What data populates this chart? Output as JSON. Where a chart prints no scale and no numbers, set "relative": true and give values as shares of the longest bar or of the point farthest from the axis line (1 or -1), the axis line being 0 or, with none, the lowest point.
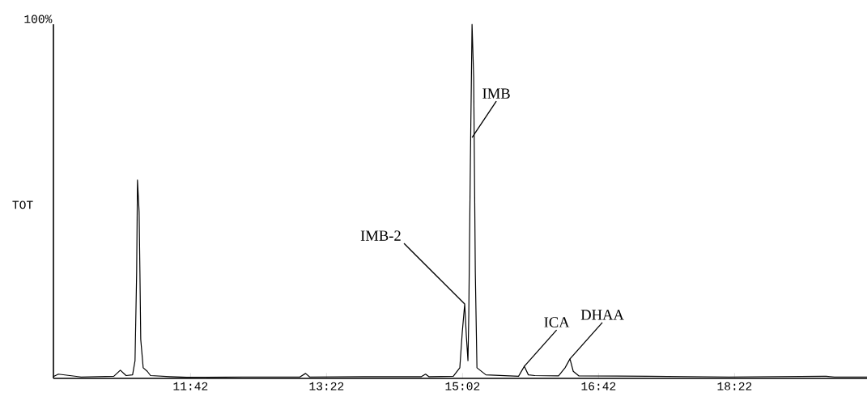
{
  "chart_data": {
    "type": "line",
    "ylabel": "TOT",
    "relative": true,
    "line_style": "solid",
    "marker": "none",
    "grid": false,
    "x": [
      10.02,
      10.08,
      10.36,
      10.76,
      10.84,
      10.91,
      10.99,
      11.02,
      11.04,
      11.05,
      11.07,
      11.08,
      11.09,
      11.12,
      11.17,
      11.21,
      11.45,
      11.65,
      12.34,
      13.04,
      13.11,
      13.16,
      13.83,
      14.53,
      14.58,
      14.62,
      14.92,
      15.0,
      15.03,
      15.06,
      15.08,
      15.1,
      15.11,
      15.13,
      15.15,
      15.17,
      15.19,
      15.21,
      15.32,
      15.72,
      15.79,
      15.84,
      15.92,
      16.21,
      16.29,
      16.35,
      16.39,
      16.46,
      17.3,
      18.3,
      19.49,
      19.59,
      19.99
    ],
    "series": [
      {
        "color": "#000000",
        "values": [
          0.005,
          0.012,
          0.004,
          0.006,
          0.023,
          0.008,
          0.01,
          0.05,
          0.3,
          0.56,
          0.47,
          0.3,
          0.11,
          0.03,
          0.02,
          0.008,
          0.005,
          0.003,
          0.004,
          0.004,
          0.014,
          0.004,
          0.005,
          0.005,
          0.012,
          0.005,
          0.006,
          0.03,
          0.13,
          0.21,
          0.12,
          0.05,
          0.18,
          0.62,
          1.0,
          0.85,
          0.3,
          0.03,
          0.01,
          0.006,
          0.034,
          0.01,
          0.008,
          0.007,
          0.03,
          0.055,
          0.02,
          0.007,
          0.006,
          0.004,
          0.006,
          0.004,
          0.004
        ]
      }
    ],
    "xlim": [
      10.02,
      19.99
    ],
    "xticks": [
      {
        "value": 11.7,
        "label": "11:42"
      },
      {
        "value": 13.3667,
        "label": "13:22"
      },
      {
        "value": 15.0333,
        "label": "15:02"
      },
      {
        "value": 16.7,
        "label": "16:42"
      },
      {
        "value": 18.3667,
        "label": "18:22"
      }
    ],
    "annotations": [
      "100%",
      {
        "text": "IMB-2",
        "x": 15.06,
        "y": 0.21
      },
      {
        "text": "IMB",
        "x": 15.15,
        "y": 0.68
      },
      {
        "text": "ICA",
        "x": 15.79,
        "y": 0.034
      },
      {
        "text": "DHAA",
        "x": 16.35,
        "y": 0.055
      }
    ]
  }
}
